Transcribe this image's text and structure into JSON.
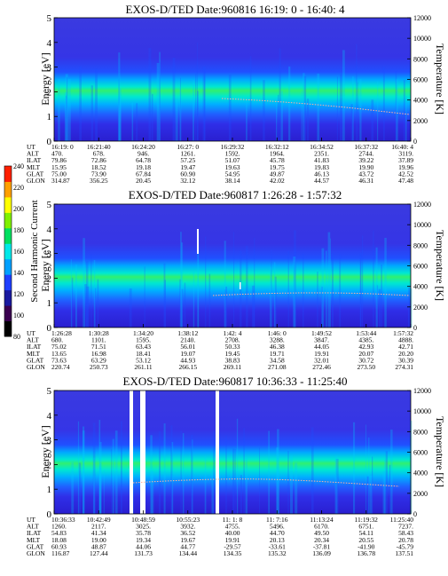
{
  "colorbar": {
    "label": "Second Harmonic Current",
    "ticks": [
      "80",
      "100",
      "120",
      "140",
      "160",
      "180",
      "200",
      "220",
      "240"
    ],
    "range": [
      80,
      240
    ],
    "colors": [
      "#000000",
      "#3b0050",
      "#1a1aa0",
      "#1f3fff",
      "#00a0ff",
      "#00e8e8",
      "#00e060",
      "#80f000",
      "#ffff00",
      "#ffa000",
      "#ff2000"
    ]
  },
  "chart_data": [
    {
      "type": "heatmap",
      "title": "EXOS-D/TED   Date:960816  16:19: 0 - 16:40: 4",
      "ylabel": "Energy [eV]",
      "y2label": "Temperature [K]",
      "ylim": [
        0,
        5
      ],
      "y2lim": [
        0,
        12000
      ],
      "yticks": [
        "0",
        "1",
        "2",
        "3",
        "4",
        "5"
      ],
      "y2ticks": [
        "0",
        "2000",
        "4000",
        "6000",
        "8000",
        "10000",
        "12000"
      ],
      "ephemeris": {
        "labels": [
          "UT",
          "ALT",
          "ILAT",
          "MLT",
          "GLAT",
          "GLON"
        ],
        "columns": [
          [
            "16:19: 0",
            "470.",
            "79.86",
            "15.95",
            "75.00",
            "314.87"
          ],
          [
            "16:21:40",
            "678.",
            "72.86",
            "18.52",
            "73.90",
            "356.25"
          ],
          [
            "16:24:20",
            "946.",
            "64.78",
            "19.18",
            "67.84",
            "20.45"
          ],
          [
            "16:27: 0",
            "1261.",
            "57.25",
            "19.47",
            "60.90",
            "32.12"
          ],
          [
            "16:29:32",
            "1592.",
            "51.07",
            "19.63",
            "54.95",
            "38.14"
          ],
          [
            "16:32:12",
            "1964.",
            "45.78",
            "19.75",
            "49.87",
            "42.02"
          ],
          [
            "16:34:52",
            "2351.",
            "41.83",
            "19.83",
            "46.13",
            "44.57"
          ],
          [
            "16:37:32",
            "2744.",
            "39.22",
            "19.90",
            "43.72",
            "46.31"
          ],
          [
            "16:40: 4",
            "3119.",
            "37.89",
            "19.96",
            "42.52",
            "47.48"
          ]
        ]
      }
    },
    {
      "type": "heatmap",
      "title": "EXOS-D/TED   Date:960817   1:26:28 - 1:57:32",
      "ylabel": "Energy [eV]",
      "y2label": "Temperature [K]",
      "ylim": [
        0,
        5
      ],
      "y2lim": [
        0,
        12000
      ],
      "yticks": [
        "0",
        "1",
        "2",
        "3",
        "4",
        "5"
      ],
      "y2ticks": [
        "0",
        "2000",
        "4000",
        "6000",
        "8000",
        "10000",
        "12000"
      ],
      "ephemeris": {
        "labels": [
          "UT",
          "ALT",
          "ILAT",
          "MLT",
          "GLAT",
          "GLON"
        ],
        "columns": [
          [
            "1:26:28",
            "680.",
            "75.02",
            "13.65",
            "73.63",
            "220.74"
          ],
          [
            "1:30:28",
            "1101.",
            "71.51",
            "16.98",
            "63.29",
            "250.73"
          ],
          [
            "1:34:20",
            "1595.",
            "63.43",
            "18.41",
            "53.12",
            "261.11"
          ],
          [
            "1:38:12",
            "2140.",
            "56.01",
            "19.07",
            "44.93",
            "266.15"
          ],
          [
            "1:42: 4",
            "2708.",
            "50.33",
            "19.45",
            "38.83",
            "269.11"
          ],
          [
            "1:46: 0",
            "3288.",
            "46.38",
            "19.71",
            "34.58",
            "271.08"
          ],
          [
            "1:49:52",
            "3847.",
            "44.05",
            "19.91",
            "32.01",
            "272.46"
          ],
          [
            "1:53:44",
            "4385.",
            "42.93",
            "20.07",
            "30.72",
            "273.50"
          ],
          [
            "1:57:32",
            "4888.",
            "42.71",
            "20.20",
            "30.39",
            "274.31"
          ]
        ]
      }
    },
    {
      "type": "heatmap",
      "title": "EXOS-D/TED   Date:960817  10:36:33 - 11:25:40",
      "ylabel": "Energy [eV]",
      "y2label": "Temperature [K]",
      "ylim": [
        0,
        5
      ],
      "y2lim": [
        0,
        12000
      ],
      "yticks": [
        "0",
        "1",
        "2",
        "3",
        "4",
        "5"
      ],
      "y2ticks": [
        "0",
        "2000",
        "4000",
        "6000",
        "8000",
        "10000",
        "12000"
      ],
      "ephemeris": {
        "labels": [
          "UT",
          "ALT",
          "ILAT",
          "MLT",
          "GLAT",
          "GLON"
        ],
        "columns": [
          [
            "10:36:33",
            "1260.",
            "54.83",
            "18.08",
            "60.93",
            "116.87"
          ],
          [
            "10:42:49",
            "2117.",
            "41.34",
            "19.00",
            "48.87",
            "127.44"
          ],
          [
            "10:48:59",
            "3025.",
            "35.78",
            "19.34",
            "44.06",
            "131.73"
          ],
          [
            "10:55:23",
            "3932.",
            "36.52",
            "19.67",
            "44.77",
            "134.44"
          ],
          [
            "11: 1: 8",
            "4755.",
            "40.00",
            "19.91",
            "-29.57",
            "134.35"
          ],
          [
            "11: 7:16",
            "5496.",
            "44.70",
            "20.13",
            "-33.61",
            "135.32"
          ],
          [
            "11:13:24",
            "6170.",
            "49.50",
            "20.34",
            "-37.81",
            "136.09"
          ],
          [
            "11:19:32",
            "6751.",
            "54.11",
            "20.55",
            "-41.90",
            "136.78"
          ],
          [
            "11:25:40",
            "7237.",
            "58.43",
            "20.78",
            "-45.79",
            "137.51"
          ]
        ]
      }
    }
  ]
}
